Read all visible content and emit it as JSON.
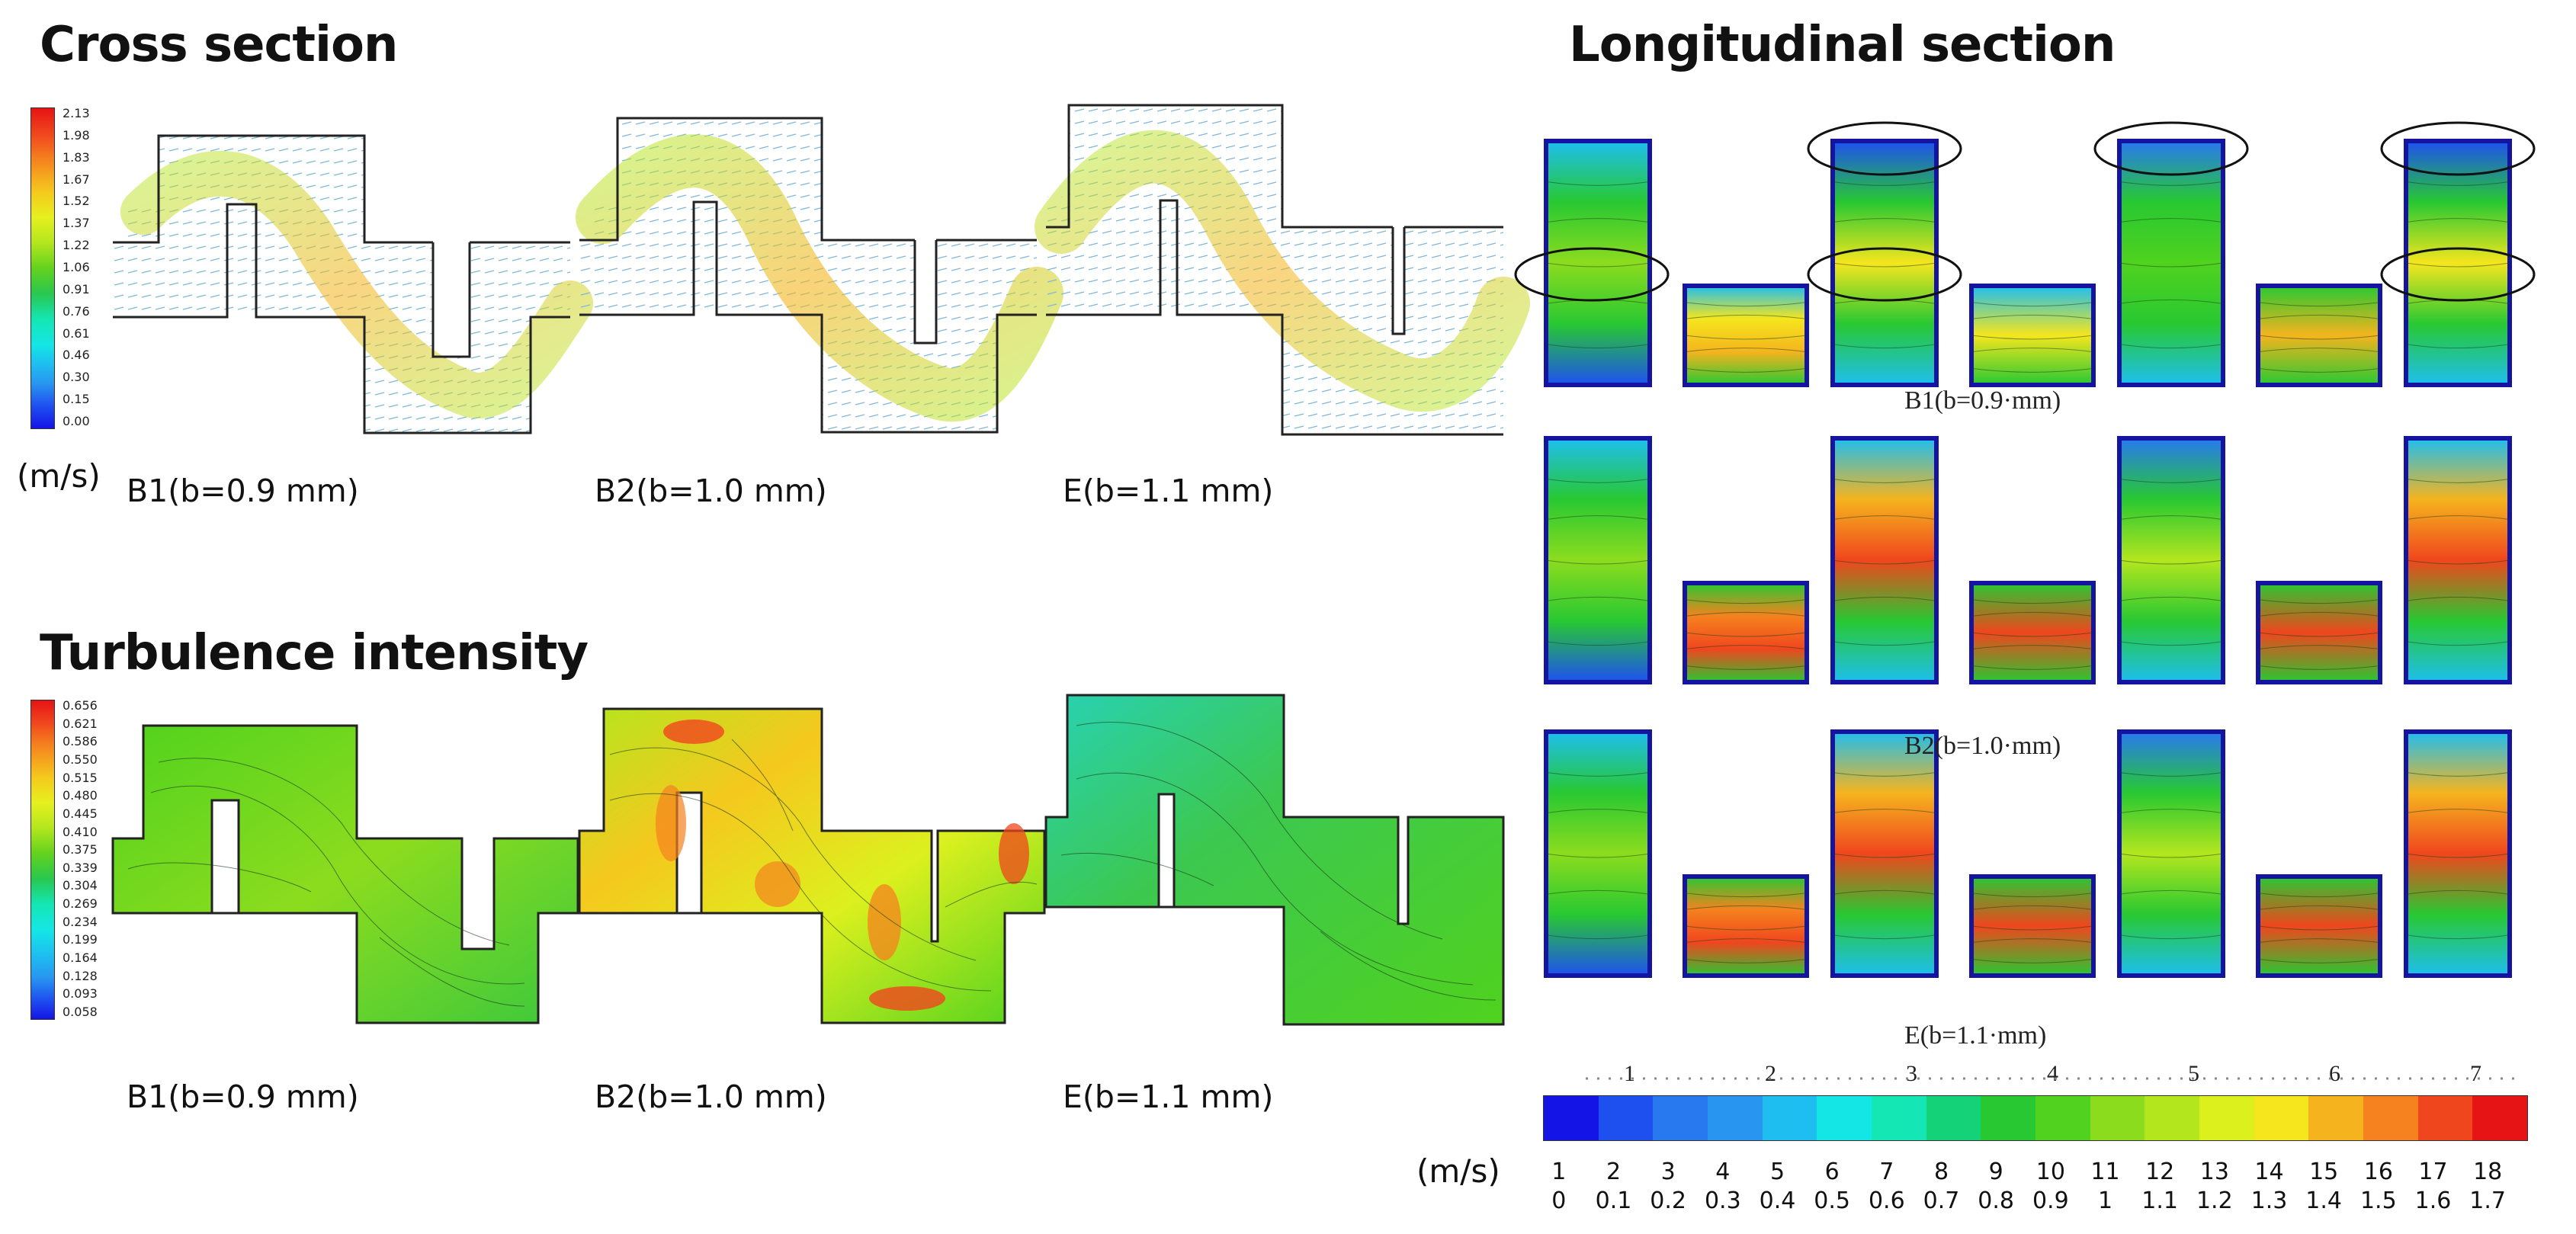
{
  "titles": {
    "cross": "Cross section",
    "turb": "Turbulence intensity",
    "long": "Longitudinal section"
  },
  "cross_colorbar": {
    "ticks": [
      "2.13",
      "1.98",
      "1.83",
      "1.67",
      "1.52",
      "1.37",
      "1.22",
      "1.06",
      "0.91",
      "0.76",
      "0.61",
      "0.46",
      "0.30",
      "0.15",
      "0.00"
    ],
    "unit": "(m/s)"
  },
  "turb_colorbar": {
    "ticks": [
      "0.656",
      "0.621",
      "0.586",
      "0.550",
      "0.515",
      "0.480",
      "0.445",
      "0.410",
      "0.375",
      "0.339",
      "0.304",
      "0.269",
      "0.234",
      "0.199",
      "0.164",
      "0.128",
      "0.093",
      "0.058"
    ]
  },
  "cross_captions": [
    "B1(b=0.9 mm)",
    "B2(b=1.0 mm)",
    "E(b=1.1 mm)"
  ],
  "turb_captions": [
    "B1(b=0.9 mm)",
    "B2(b=1.0 mm)",
    "E(b=1.1 mm)"
  ],
  "long_captions": [
    "B1(b=0.9·mm)",
    "B2(b=1.0·mm)",
    "E(b=1.1·mm)"
  ],
  "long_colorbar": {
    "top_labels": [
      "1",
      "2",
      "3",
      "4",
      "5",
      "6",
      "7"
    ],
    "unit": "(m/s)",
    "levels": [
      "1",
      "2",
      "3",
      "4",
      "5",
      "6",
      "7",
      "8",
      "9",
      "10",
      "11",
      "12",
      "13",
      "14",
      "15",
      "16",
      "17",
      "18"
    ],
    "values": [
      "0",
      "0.1",
      "0.2",
      "0.3",
      "0.4",
      "0.5",
      "0.6",
      "0.7",
      "0.8",
      "0.9",
      "1",
      "1.1",
      "1.2",
      "1.3",
      "1.4",
      "1.5",
      "1.6",
      "1.7"
    ],
    "colors": [
      "#1414e6",
      "#1e50f0",
      "#2878f0",
      "#2896f0",
      "#1ebef0",
      "#14e6e6",
      "#14e6b4",
      "#14d278",
      "#28c832",
      "#50d21e",
      "#8cdc1e",
      "#b4e61e",
      "#dcf01e",
      "#f5e61e",
      "#f5b41e",
      "#f5821e",
      "#f0461e",
      "#e61414"
    ]
  }
}
